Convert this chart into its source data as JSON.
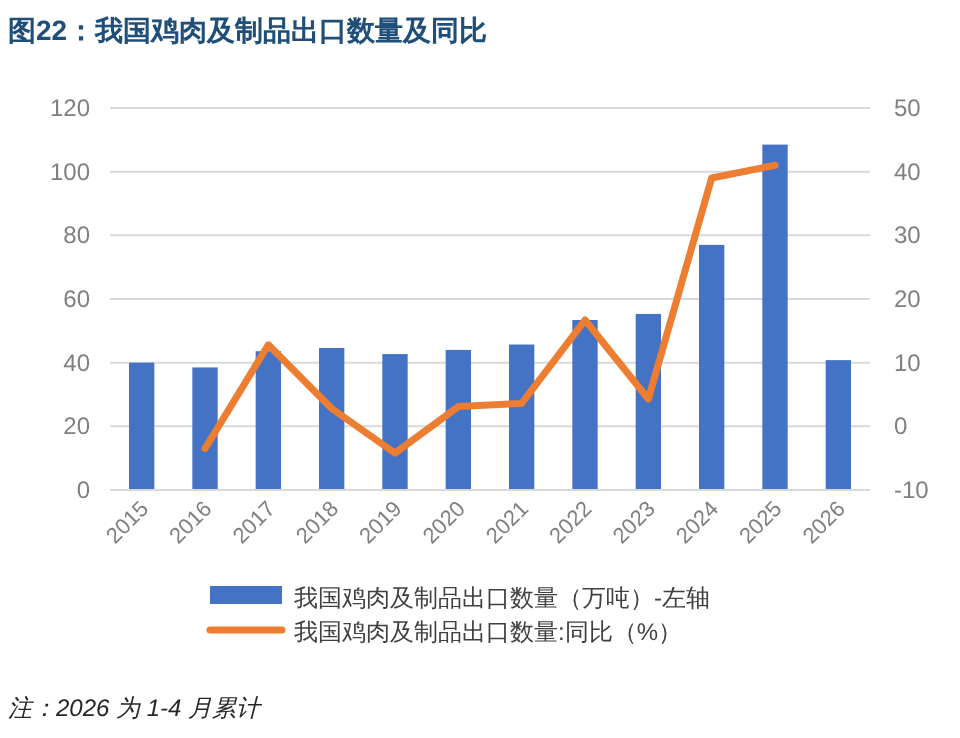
{
  "chart_data": {
    "type": "bar",
    "title": "图22：我国鸡肉及制品出口数量及同比",
    "categories": [
      "2015",
      "2016",
      "2017",
      "2018",
      "2019",
      "2020",
      "2021",
      "2022",
      "2023",
      "2024",
      "2025",
      "2026"
    ],
    "series": [
      {
        "name": "我国鸡肉及制品出口数量（万吨）-左轴",
        "color": "#4472c4",
        "values": [
          40.0,
          38.5,
          43.6,
          44.6,
          42.7,
          44.0,
          45.7,
          53.4,
          55.3,
          77.0,
          108.5,
          40.8
        ]
      },
      {
        "name": "我国鸡肉及制品出口数量:同比（%）",
        "type": "line",
        "axis": "y2",
        "color": "#ed7d31",
        "values": [
          null,
          -3.5,
          12.8,
          2.8,
          -4.2,
          3.1,
          3.6,
          16.7,
          4.3,
          39.0,
          41.0,
          null
        ]
      }
    ],
    "ylim": [
      0,
      120
    ],
    "yticks": [
      0,
      20,
      40,
      60,
      80,
      100,
      120
    ],
    "y2lim": [
      -10,
      50
    ],
    "y2ticks": [
      -10,
      0,
      10,
      20,
      30,
      40,
      50
    ],
    "grid": "y",
    "legend": "bottom",
    "marker": "none",
    "line_style": "solid",
    "annotations": [
      "注：2026 为 1-4 月累计"
    ]
  }
}
